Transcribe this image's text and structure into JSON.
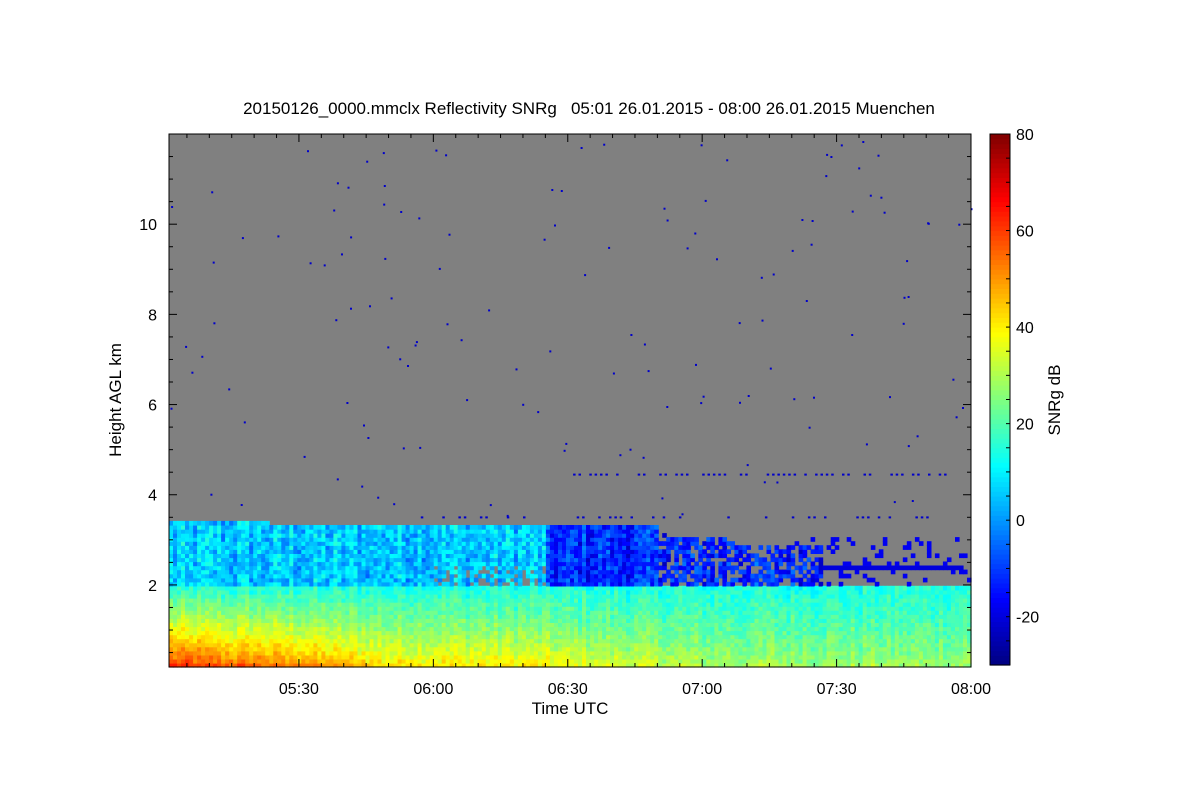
{
  "chart_data": {
    "type": "heatmap",
    "title": "20150126_0000.mmclx Reflectivity SNRg   05:01 26.01.2015 - 08:00 26.01.2015 Muenchen",
    "xlabel": "Time UTC",
    "ylabel": "Height AGL km",
    "colorbar_label": "SNRg dB",
    "x_range_minutes_utc": [
      301,
      480
    ],
    "x_ticks": [
      {
        "minutes": 330,
        "label": "05:30"
      },
      {
        "minutes": 360,
        "label": "06:00"
      },
      {
        "minutes": 390,
        "label": "06:30"
      },
      {
        "minutes": 420,
        "label": "07:00"
      },
      {
        "minutes": 450,
        "label": "07:30"
      },
      {
        "minutes": 480,
        "label": "08:00"
      }
    ],
    "y_range_km": [
      0.18,
      12.0
    ],
    "y_ticks": [
      {
        "value": 2,
        "label": "2"
      },
      {
        "value": 4,
        "label": "4"
      },
      {
        "value": 6,
        "label": "6"
      },
      {
        "value": 8,
        "label": "8"
      },
      {
        "value": 10,
        "label": "10"
      }
    ],
    "color_range_db": [
      -30,
      80
    ],
    "color_ticks": [
      {
        "value": -20,
        "label": "-20"
      },
      {
        "value": 0,
        "label": "0"
      },
      {
        "value": 20,
        "label": "20"
      },
      {
        "value": 40,
        "label": "40"
      },
      {
        "value": 60,
        "label": "60"
      },
      {
        "value": 80,
        "label": "80"
      }
    ],
    "no_data_color": "#808080",
    "boundary_layer_top_km": 1.95,
    "cloud_top_km": [
      {
        "minutes": 301,
        "top": 3.35
      },
      {
        "minutes": 410,
        "top": 3.25
      },
      {
        "minutes": 412,
        "top": 3.05
      },
      {
        "minutes": 425,
        "top": 3.0
      },
      {
        "minutes": 427,
        "top": 2.85
      },
      {
        "minutes": 446,
        "top": 2.85
      }
    ],
    "surface_snr_db": [
      {
        "minutes": 301,
        "value": 62
      },
      {
        "minutes": 330,
        "value": 52
      },
      {
        "minutes": 350,
        "value": 42
      },
      {
        "minutes": 380,
        "value": 40
      },
      {
        "minutes": 420,
        "value": 30
      },
      {
        "minutes": 480,
        "value": 28
      }
    ]
  }
}
